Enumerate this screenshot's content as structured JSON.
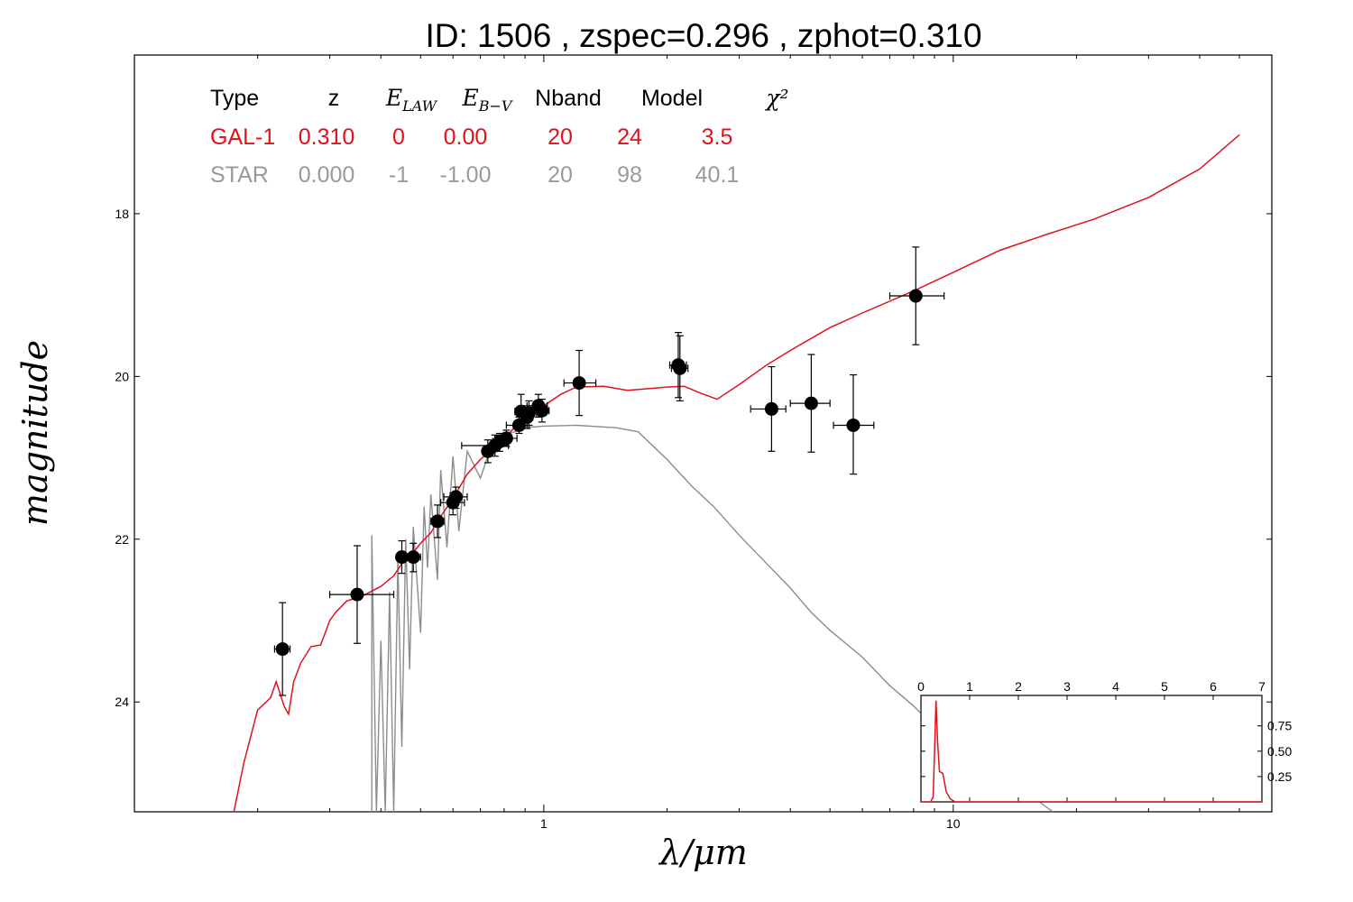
{
  "chart_data": {
    "type": "scatter",
    "title": "ID:  1506  , zspec=0.296 , zphot=0.310",
    "xlabel": "λ/μm",
    "ylabel": "magnitude",
    "x_scale": "log",
    "xlim": [
      0.1,
      60
    ],
    "ylim": [
      25.35,
      16.05
    ],
    "y_inverted": true,
    "x_ticks": [
      1,
      10
    ],
    "x_tick_labels": [
      "1",
      "10"
    ],
    "y_ticks": [
      18,
      20,
      22,
      24
    ],
    "y_tick_labels": [
      "18",
      "20",
      "22",
      "24"
    ],
    "colors": {
      "galaxy": "#e0121b",
      "star": "#8c8c8c",
      "points": "#000000"
    },
    "table": {
      "headers": [
        "Type",
        "z",
        "E_LAW",
        "E_B-V",
        "Nband",
        "Model",
        "χ²"
      ],
      "rows": [
        {
          "color": "#e0121b",
          "values": [
            "GAL-1",
            "0.310",
            "0",
            "0.00",
            "20",
            "24",
            "3.5"
          ]
        },
        {
          "color": "#9a9a9a",
          "values": [
            "STAR",
            "0.000",
            "-1",
            "-1.00",
            "20",
            "98",
            "40.1"
          ]
        }
      ]
    },
    "points": [
      {
        "x": 0.23,
        "y": 23.35,
        "xlo": 0.22,
        "xhi": 0.24,
        "ylo": 22.78,
        "yhi": 23.92
      },
      {
        "x": 0.35,
        "y": 22.68,
        "xlo": 0.3,
        "xhi": 0.43,
        "ylo": 22.08,
        "yhi": 23.28
      },
      {
        "x": 0.45,
        "y": 22.22,
        "xlo": 0.44,
        "xhi": 0.46,
        "ylo": 22.02,
        "yhi": 22.42
      },
      {
        "x": 0.48,
        "y": 22.22,
        "xlo": 0.46,
        "xhi": 0.5,
        "ylo": 22.05,
        "yhi": 22.4
      },
      {
        "x": 0.55,
        "y": 21.78,
        "xlo": 0.53,
        "xhi": 0.57,
        "ylo": 21.58,
        "yhi": 21.98
      },
      {
        "x": 0.6,
        "y": 21.55,
        "xlo": 0.56,
        "xhi": 0.64,
        "ylo": 21.43,
        "yhi": 21.7
      },
      {
        "x": 0.61,
        "y": 21.48,
        "xlo": 0.57,
        "xhi": 0.65,
        "ylo": 21.36,
        "yhi": 21.62
      },
      {
        "x": 0.73,
        "y": 20.92,
        "xlo": 0.71,
        "xhi": 0.75,
        "ylo": 20.78,
        "yhi": 21.06
      },
      {
        "x": 0.76,
        "y": 20.85,
        "xlo": 0.63,
        "xhi": 0.82,
        "ylo": 20.72,
        "yhi": 20.98
      },
      {
        "x": 0.78,
        "y": 20.8,
        "xlo": 0.75,
        "xhi": 0.81,
        "ylo": 20.7,
        "yhi": 20.92
      },
      {
        "x": 0.81,
        "y": 20.76,
        "xlo": 0.76,
        "xhi": 0.86,
        "ylo": 20.66,
        "yhi": 20.86
      },
      {
        "x": 0.87,
        "y": 20.6,
        "xlo": 0.81,
        "xhi": 0.92,
        "ylo": 20.5,
        "yhi": 20.7
      },
      {
        "x": 0.88,
        "y": 20.43,
        "xlo": 0.85,
        "xhi": 0.91,
        "ylo": 20.22,
        "yhi": 20.64
      },
      {
        "x": 0.91,
        "y": 20.5,
        "xlo": 0.88,
        "xhi": 0.94,
        "ylo": 20.36,
        "yhi": 20.64
      },
      {
        "x": 0.92,
        "y": 20.45,
        "xlo": 0.89,
        "xhi": 0.96,
        "ylo": 20.3,
        "yhi": 20.6
      },
      {
        "x": 0.97,
        "y": 20.36,
        "xlo": 0.91,
        "xhi": 1.02,
        "ylo": 20.22,
        "yhi": 20.5
      },
      {
        "x": 0.99,
        "y": 20.42,
        "xlo": 0.95,
        "xhi": 1.03,
        "ylo": 20.28,
        "yhi": 20.56
      },
      {
        "x": 1.22,
        "y": 20.08,
        "xlo": 1.12,
        "xhi": 1.34,
        "ylo": 19.68,
        "yhi": 20.48
      },
      {
        "x": 2.13,
        "y": 19.86,
        "xlo": 2.03,
        "xhi": 2.23,
        "ylo": 19.46,
        "yhi": 20.26
      },
      {
        "x": 2.15,
        "y": 19.9,
        "xlo": 2.05,
        "xhi": 2.25,
        "ylo": 19.5,
        "yhi": 20.3
      },
      {
        "x": 3.6,
        "y": 20.4,
        "xlo": 3.2,
        "xhi": 3.9,
        "ylo": 19.88,
        "yhi": 20.92
      },
      {
        "x": 4.5,
        "y": 20.33,
        "xlo": 4.0,
        "xhi": 5.0,
        "ylo": 19.73,
        "yhi": 20.93
      },
      {
        "x": 5.7,
        "y": 20.6,
        "xlo": 5.1,
        "xhi": 6.4,
        "ylo": 19.98,
        "yhi": 21.2
      },
      {
        "x": 8.1,
        "y": 19.01,
        "xlo": 7.0,
        "xhi": 9.5,
        "ylo": 18.41,
        "yhi": 19.61
      }
    ],
    "galaxy_model": [
      [
        0.175,
        25.35
      ],
      [
        0.185,
        24.75
      ],
      [
        0.2,
        24.1
      ],
      [
        0.215,
        23.95
      ],
      [
        0.222,
        23.75
      ],
      [
        0.232,
        24.05
      ],
      [
        0.238,
        24.15
      ],
      [
        0.245,
        23.75
      ],
      [
        0.255,
        23.52
      ],
      [
        0.27,
        23.32
      ],
      [
        0.285,
        23.3
      ],
      [
        0.3,
        23.0
      ],
      [
        0.31,
        22.9
      ],
      [
        0.33,
        22.76
      ],
      [
        0.36,
        22.7
      ],
      [
        0.4,
        22.58
      ],
      [
        0.43,
        22.45
      ],
      [
        0.45,
        22.3
      ],
      [
        0.47,
        22.22
      ],
      [
        0.5,
        22.05
      ],
      [
        0.53,
        21.92
      ],
      [
        0.56,
        21.72
      ],
      [
        0.6,
        21.5
      ],
      [
        0.65,
        21.2
      ],
      [
        0.7,
        21.02
      ],
      [
        0.75,
        20.88
      ],
      [
        0.8,
        20.77
      ],
      [
        0.85,
        20.62
      ],
      [
        0.9,
        20.5
      ],
      [
        0.95,
        20.43
      ],
      [
        1.0,
        20.36
      ],
      [
        1.1,
        20.22
      ],
      [
        1.2,
        20.13
      ],
      [
        1.4,
        20.12
      ],
      [
        1.6,
        20.17
      ],
      [
        1.8,
        20.15
      ],
      [
        2.0,
        20.13
      ],
      [
        2.2,
        20.12
      ],
      [
        2.4,
        20.2
      ],
      [
        2.65,
        20.28
      ],
      [
        3.0,
        20.1
      ],
      [
        3.5,
        19.86
      ],
      [
        4.0,
        19.68
      ],
      [
        5.0,
        19.4
      ],
      [
        6.0,
        19.22
      ],
      [
        8.0,
        18.95
      ],
      [
        10.0,
        18.72
      ],
      [
        13.0,
        18.45
      ],
      [
        17.0,
        18.25
      ],
      [
        22.0,
        18.07
      ],
      [
        30.0,
        17.8
      ],
      [
        40.0,
        17.45
      ],
      [
        50.0,
        17.03
      ]
    ],
    "star_model": [
      [
        0.38,
        25.35
      ],
      [
        0.38,
        21.95
      ],
      [
        0.39,
        25.35
      ],
      [
        0.4,
        23.25
      ],
      [
        0.41,
        25.35
      ],
      [
        0.42,
        22.65
      ],
      [
        0.43,
        25.35
      ],
      [
        0.44,
        22.25
      ],
      [
        0.45,
        24.55
      ],
      [
        0.46,
        22.0
      ],
      [
        0.47,
        23.6
      ],
      [
        0.48,
        21.85
      ],
      [
        0.5,
        23.15
      ],
      [
        0.51,
        21.6
      ],
      [
        0.52,
        22.35
      ],
      [
        0.53,
        21.45
      ],
      [
        0.55,
        22.5
      ],
      [
        0.56,
        21.15
      ],
      [
        0.58,
        22.1
      ],
      [
        0.6,
        20.98
      ],
      [
        0.62,
        21.9
      ],
      [
        0.65,
        20.92
      ],
      [
        0.7,
        21.25
      ],
      [
        0.75,
        20.8
      ],
      [
        0.8,
        20.72
      ],
      [
        0.85,
        20.68
      ],
      [
        0.9,
        20.62
      ],
      [
        0.95,
        20.62
      ],
      [
        1.0,
        20.61
      ],
      [
        1.2,
        20.6
      ],
      [
        1.5,
        20.63
      ],
      [
        1.7,
        20.68
      ],
      [
        2.0,
        21.02
      ],
      [
        2.3,
        21.35
      ],
      [
        2.6,
        21.6
      ],
      [
        3.0,
        21.95
      ],
      [
        3.5,
        22.3
      ],
      [
        4.0,
        22.6
      ],
      [
        4.5,
        22.9
      ],
      [
        5.0,
        23.12
      ],
      [
        6.0,
        23.45
      ],
      [
        7.0,
        23.8
      ],
      [
        8.0,
        24.05
      ],
      [
        9.0,
        24.3
      ],
      [
        10.0,
        24.45
      ],
      [
        12.0,
        24.75
      ],
      [
        15.0,
        25.1
      ],
      [
        17.5,
        25.35
      ]
    ],
    "inset": {
      "type": "line",
      "xlim": [
        0,
        7
      ],
      "ylim": [
        0,
        1.05
      ],
      "x_ticks": [
        0,
        1,
        2,
        3,
        4,
        5,
        6,
        7
      ],
      "x_tick_labels": [
        "0",
        "1",
        "2",
        "3",
        "4",
        "5",
        "6",
        "7"
      ],
      "y_ticks": [
        0.25,
        0.5,
        0.75
      ],
      "y_tick_labels": [
        "0.25",
        "0.50",
        "0.75"
      ],
      "pdz": [
        [
          0.0,
          0.0
        ],
        [
          0.2,
          0.0
        ],
        [
          0.25,
          0.05
        ],
        [
          0.28,
          0.5
        ],
        [
          0.31,
          1.0
        ],
        [
          0.34,
          0.6
        ],
        [
          0.38,
          0.3
        ],
        [
          0.45,
          0.28
        ],
        [
          0.52,
          0.1
        ],
        [
          0.6,
          0.03
        ],
        [
          0.7,
          0.0
        ],
        [
          7.0,
          0.0
        ]
      ]
    }
  }
}
